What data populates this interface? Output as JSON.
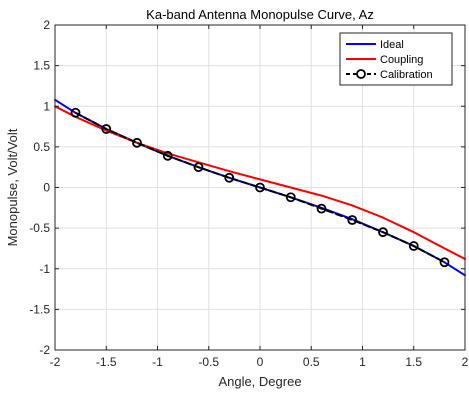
{
  "chart_data": {
    "type": "line",
    "title": "Ka-band Antenna Monopulse Curve, Az",
    "xlabel": "Angle, Degree",
    "ylabel": "Monopulse, Volt/Volt",
    "xlim": [
      -2,
      2
    ],
    "ylim": [
      -2,
      2
    ],
    "xticks": [
      -2,
      -1.5,
      -1,
      -0.5,
      0,
      0.5,
      1,
      1.5,
      2
    ],
    "yticks": [
      -2,
      -1.5,
      -1,
      -0.5,
      0,
      0.5,
      1,
      1.5,
      2
    ],
    "xtick_labels": [
      "-2",
      "-1.5",
      "-1",
      "-0.5",
      "0",
      "0.5",
      "1",
      "1.5",
      "2"
    ],
    "ytick_labels": [
      "-2",
      "-1.5",
      "-1",
      "-0.5",
      "0",
      "0.5",
      "1",
      "1.5",
      "2"
    ],
    "grid": true,
    "legend_position": "top-right",
    "series": [
      {
        "name": "Ideal",
        "color": "#0000ff",
        "style": "solid",
        "marker": "none",
        "x": [
          -2,
          -1.8,
          -1.5,
          -1.2,
          -0.9,
          -0.6,
          -0.3,
          0,
          0.3,
          0.6,
          0.9,
          1.2,
          1.5,
          1.8,
          2
        ],
        "y": [
          1.08,
          0.92,
          0.72,
          0.55,
          0.39,
          0.25,
          0.12,
          0.0,
          -0.12,
          -0.25,
          -0.39,
          -0.55,
          -0.72,
          -0.92,
          -1.08
        ]
      },
      {
        "name": "Coupling",
        "color": "#ff0000",
        "style": "solid",
        "marker": "none",
        "x": [
          -2,
          -1.8,
          -1.5,
          -1.2,
          -0.9,
          -0.6,
          -0.3,
          0,
          0.3,
          0.6,
          0.9,
          1.2,
          1.5,
          1.8,
          2
        ],
        "y": [
          1.0,
          0.87,
          0.7,
          0.55,
          0.42,
          0.31,
          0.2,
          0.1,
          0.0,
          -0.1,
          -0.22,
          -0.37,
          -0.55,
          -0.75,
          -0.88
        ]
      },
      {
        "name": "Calibration",
        "color": "#000000",
        "style": "dashed",
        "marker": "circle",
        "x": [
          -1.8,
          -1.5,
          -1.2,
          -0.9,
          -0.6,
          -0.3,
          0,
          0.3,
          0.6,
          0.9,
          1.2,
          1.5,
          1.8
        ],
        "y": [
          0.92,
          0.72,
          0.55,
          0.39,
          0.25,
          0.12,
          0.0,
          -0.12,
          -0.26,
          -0.4,
          -0.55,
          -0.72,
          -0.92
        ]
      }
    ]
  }
}
